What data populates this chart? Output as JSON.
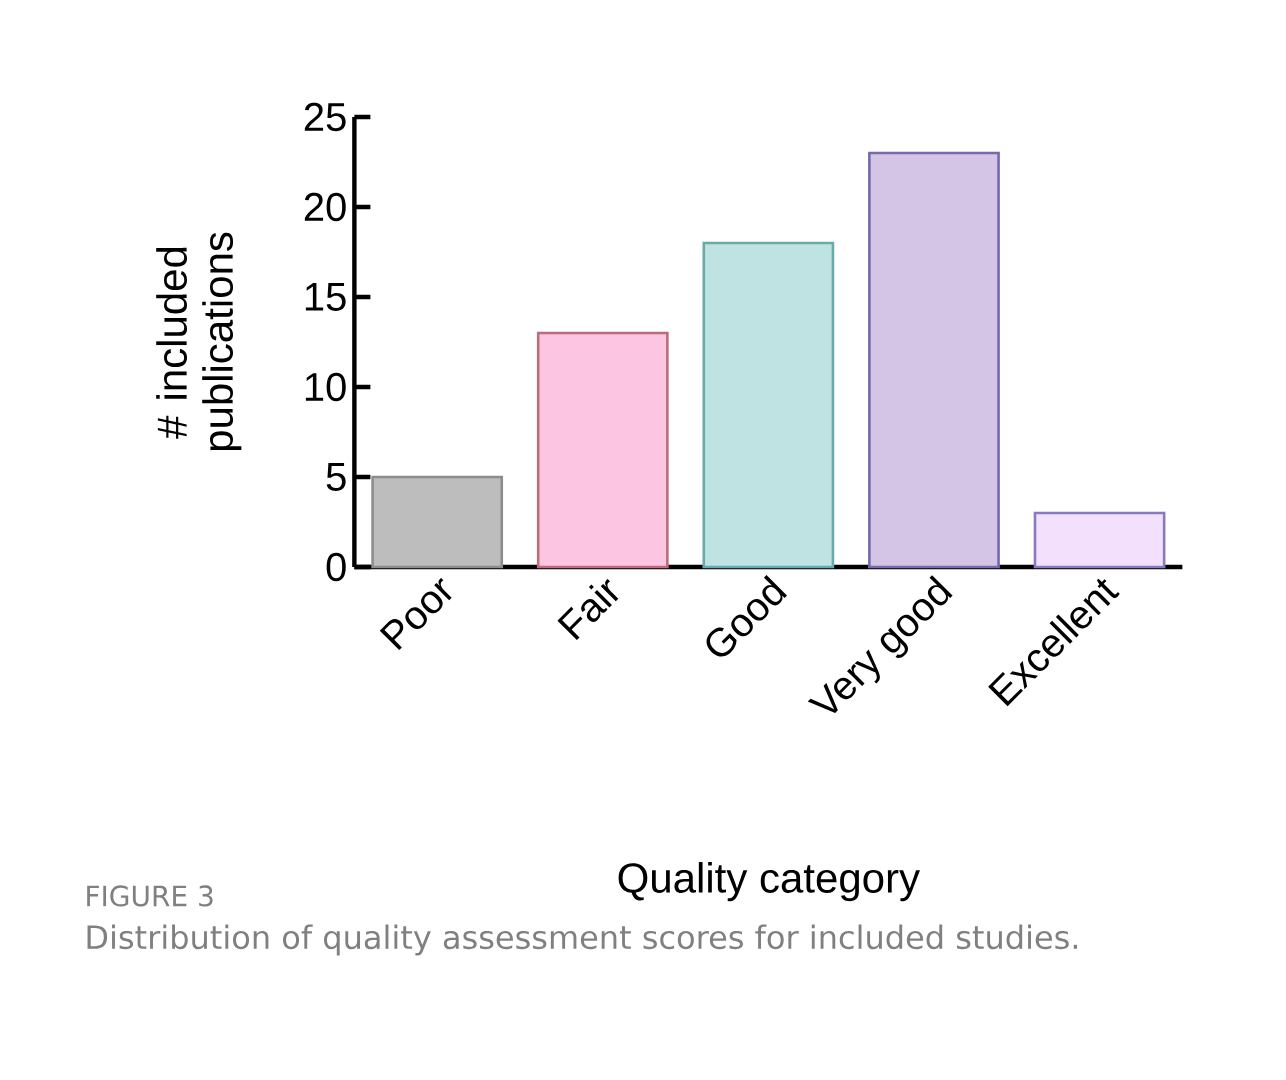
{
  "chart_data": {
    "type": "bar",
    "categories": [
      "Poor",
      "Fair",
      "Good",
      "Very good",
      "Excellent"
    ],
    "values": [
      5,
      13,
      18,
      23,
      3
    ],
    "colors": [
      "#bdbdbd",
      "#fcc5e1",
      "#bfe3e3",
      "#d4c4e6",
      "#f3e0fd"
    ],
    "xlabel": "Quality category",
    "ylabel": "# included publications",
    "ylim": [
      0,
      25
    ],
    "yticks": [
      0,
      5,
      10,
      15,
      20,
      25
    ],
    "grid": false,
    "annotations": [
      "FIGURE 3",
      "Distribution of quality assessment scores for included studies."
    ]
  }
}
